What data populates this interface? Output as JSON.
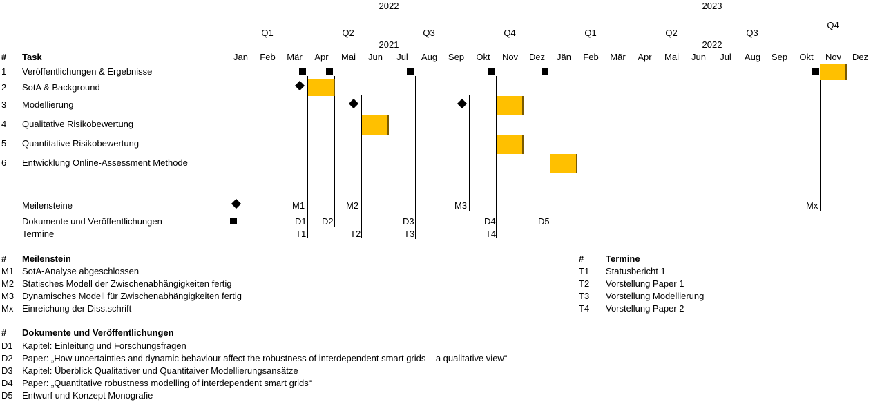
{
  "years": [
    "2022",
    "2023"
  ],
  "year_sub": [
    "2021",
    "2022"
  ],
  "quarters": [
    "Q1",
    "Q2",
    "Q3",
    "Q4",
    "Q1",
    "Q2",
    "Q3",
    "Q4"
  ],
  "months": [
    "Jan",
    "Feb",
    "Mär",
    "Apr",
    "Mai",
    "Jun",
    "Jul",
    "Aug",
    "Sep",
    "Okt",
    "Nov",
    "Dez",
    "Jän",
    "Feb",
    "Mär",
    "Apr",
    "Mai",
    "Jun",
    "Jul",
    "Aug",
    "Sep",
    "Okt",
    "Nov",
    "Dez"
  ],
  "header": {
    "num": "#",
    "task": "Task"
  },
  "tasks": [
    {
      "num": "1",
      "label": "Veröffentlichungen & Ergebnisse"
    },
    {
      "num": "2",
      "label": "SotA & Background"
    },
    {
      "num": "3",
      "label": "Modellierung"
    },
    {
      "num": "4",
      "label": "Qualitative Risikobewertung"
    },
    {
      "num": "5",
      "label": "Quantitative Risikobewertung"
    },
    {
      "num": "6",
      "label": "Entwicklung Online-Assessment Methode"
    }
  ],
  "bars": [
    {
      "task": 1,
      "start": 22,
      "end": 23
    },
    {
      "task": 2,
      "start": 3,
      "end": 4
    },
    {
      "task": 3,
      "start": 10,
      "end": 11
    },
    {
      "task": 4,
      "start": 5,
      "end": 6
    },
    {
      "task": 5,
      "start": 10,
      "end": 11
    },
    {
      "task": 6,
      "start": 12,
      "end": 13
    }
  ],
  "legend_rows": {
    "milestones": "Meilensteine",
    "documents": "Dokumente und Veröffentlichungen",
    "dates": "Termine"
  },
  "milestone_labels": [
    "M1",
    "M2",
    "M3",
    "Mx"
  ],
  "document_labels": [
    "D1",
    "D2",
    "D3",
    "D4",
    "D5"
  ],
  "date_labels": [
    "T1",
    "T2",
    "T3",
    "T4"
  ],
  "milestone_list": {
    "title": "Meilenstein",
    "items": [
      {
        "id": "M1",
        "text": "SotA-Analyse abgeschlossen"
      },
      {
        "id": "M2",
        "text": "Statisches Modell der Zwischenabhängigkeiten fertig"
      },
      {
        "id": "M3",
        "text": "Dynamisches Modell für Zwischenabhängigkeiten fertig"
      },
      {
        "id": "Mx",
        "text": "Einreichung der Diss.schrift"
      }
    ]
  },
  "dates_list": {
    "title": "Termine",
    "items": [
      {
        "id": "T1",
        "text": "Statusbericht 1"
      },
      {
        "id": "T2",
        "text": " Vorstellung Paper 1"
      },
      {
        "id": "T3",
        "text": "Vorstellung Modellierung"
      },
      {
        "id": "T4",
        "text": "Vorstellung Paper 2"
      }
    ]
  },
  "documents_list": {
    "title": "Dokumente und Veröffentlichungen",
    "items": [
      {
        "id": "D1",
        "text": "Kapitel: Einleitung und Forschungsfragen"
      },
      {
        "id": "D2",
        "text": "Paper: „How uncertainties and dynamic behaviour affect the robustness of interdependent smart grids – a qualitative view“"
      },
      {
        "id": "D3",
        "text": "Kapitel: Überblick Qualitativer und Quantitaiver Modellierungsansätze"
      },
      {
        "id": "D4",
        "text": "Paper: „Quantitative robustness modelling of interdependent smart grids“"
      },
      {
        "id": "D5",
        "text": "Entwurf und Konzept Monografie"
      }
    ]
  },
  "colors": {
    "bar": "#ffc000",
    "bar_edge": "#7a5a00",
    "line": "#000000"
  }
}
